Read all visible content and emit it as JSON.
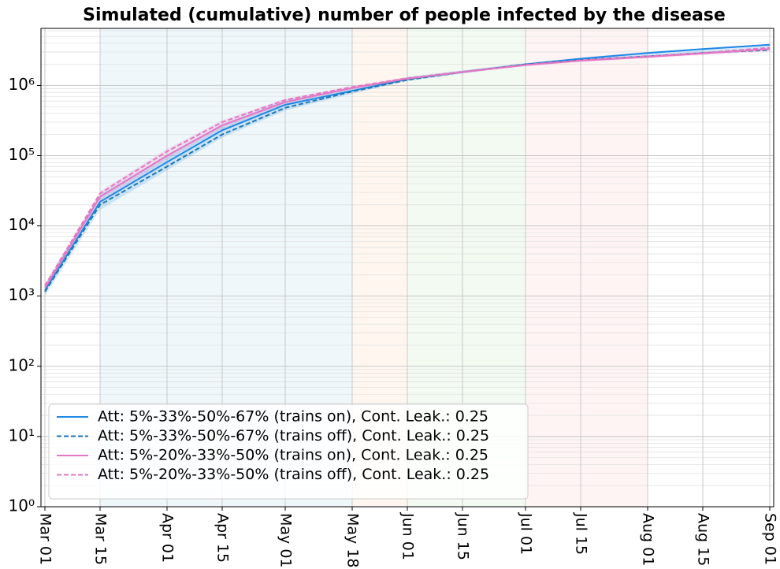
{
  "chart_data": {
    "type": "line",
    "title": "Simulated (cumulative) number of people infected by the disease",
    "log_y": true,
    "grid": true,
    "legend": "lower left",
    "xlim": [
      -1,
      185
    ],
    "ylim": [
      1,
      6500000
    ],
    "xticks": [
      {
        "value": 0,
        "label": "Mar 01"
      },
      {
        "value": 14,
        "label": "Mar 15"
      },
      {
        "value": 31,
        "label": "Apr 01"
      },
      {
        "value": 45,
        "label": "Apr 15"
      },
      {
        "value": 61,
        "label": "May 01"
      },
      {
        "value": 78,
        "label": "May 18"
      },
      {
        "value": 92,
        "label": "Jun 01"
      },
      {
        "value": 106,
        "label": "Jun 15"
      },
      {
        "value": 122,
        "label": "Jul 01"
      },
      {
        "value": 136,
        "label": "Jul 15"
      },
      {
        "value": 153,
        "label": "Aug 01"
      },
      {
        "value": 167,
        "label": "Aug 15"
      },
      {
        "value": 184,
        "label": "Sep 01"
      }
    ],
    "yticks": [
      {
        "value": 1,
        "label": "10⁰"
      },
      {
        "value": 10,
        "label": "10¹"
      },
      {
        "value": 100,
        "label": "10²"
      },
      {
        "value": 1000,
        "label": "10³"
      },
      {
        "value": 10000,
        "label": "10⁴"
      },
      {
        "value": 100000,
        "label": "10⁵"
      },
      {
        "value": 1000000,
        "label": "10⁶"
      }
    ],
    "spans": [
      {
        "start": 14,
        "end": 78,
        "color": "#a9d3ea"
      },
      {
        "start": 78,
        "end": 92,
        "color": "#ffd2a8"
      },
      {
        "start": 92,
        "end": 122,
        "color": "#b9e3b9"
      },
      {
        "start": 122,
        "end": 153,
        "color": "#ffc4c4"
      }
    ],
    "x": [
      0,
      14,
      31,
      45,
      61,
      78,
      92,
      106,
      122,
      136,
      153,
      167,
      184
    ],
    "series": [
      {
        "name": "Att: 5%-33%-50%-67% (trains on), Cont. Leak.: 0.25",
        "color": "#1e88e5",
        "dash": false,
        "values": [
          1200,
          22000,
          81000,
          230000,
          530000,
          840000,
          1230000,
          1550000,
          2000000,
          2400000,
          2900000,
          3300000,
          3800000
        ],
        "lower": [
          1000,
          17000,
          62000,
          180000,
          440000,
          760000,
          1150000,
          1480000,
          1920000,
          2250000,
          2600000,
          2900000,
          3200000
        ],
        "upper": [
          1500,
          28000,
          100000,
          280000,
          620000,
          930000,
          1320000,
          1640000,
          2080000,
          2500000,
          3000000,
          3400000,
          3900000
        ]
      },
      {
        "name": "Att: 5%-33%-50%-67% (trains off), Cont. Leak.: 0.25",
        "color": "#1f77b4",
        "dash": true,
        "values": [
          1150,
          20000,
          70000,
          200000,
          480000,
          820000,
          1200000,
          1550000,
          2000000,
          2300000,
          2600000,
          2900000,
          3200000
        ]
      },
      {
        "name": "Att: 5%-20%-33%-50% (trains on), Cont. Leak.: 0.25",
        "color": "#e377c2",
        "dash": false,
        "values": [
          1300,
          26000,
          100000,
          270000,
          580000,
          920000,
          1250000,
          1550000,
          1950000,
          2250000,
          2550000,
          2850000,
          3300000
        ],
        "lower": [
          1150,
          22000,
          88000,
          240000,
          530000,
          870000,
          1200000,
          1500000,
          1880000,
          2150000,
          2450000,
          2700000,
          3050000
        ],
        "upper": [
          1500,
          31000,
          125000,
          320000,
          650000,
          980000,
          1310000,
          1610000,
          2020000,
          2350000,
          2700000,
          3000000,
          3500000
        ]
      },
      {
        "name": "Att: 5%-20%-33%-50% (trains off), Cont. Leak.: 0.25",
        "color": "#e377c2",
        "dash": true,
        "values": [
          1400,
          29000,
          115000,
          300000,
          620000,
          950000,
          1270000,
          1570000,
          1970000,
          2280000,
          2600000,
          2900000,
          3450000
        ]
      }
    ]
  }
}
